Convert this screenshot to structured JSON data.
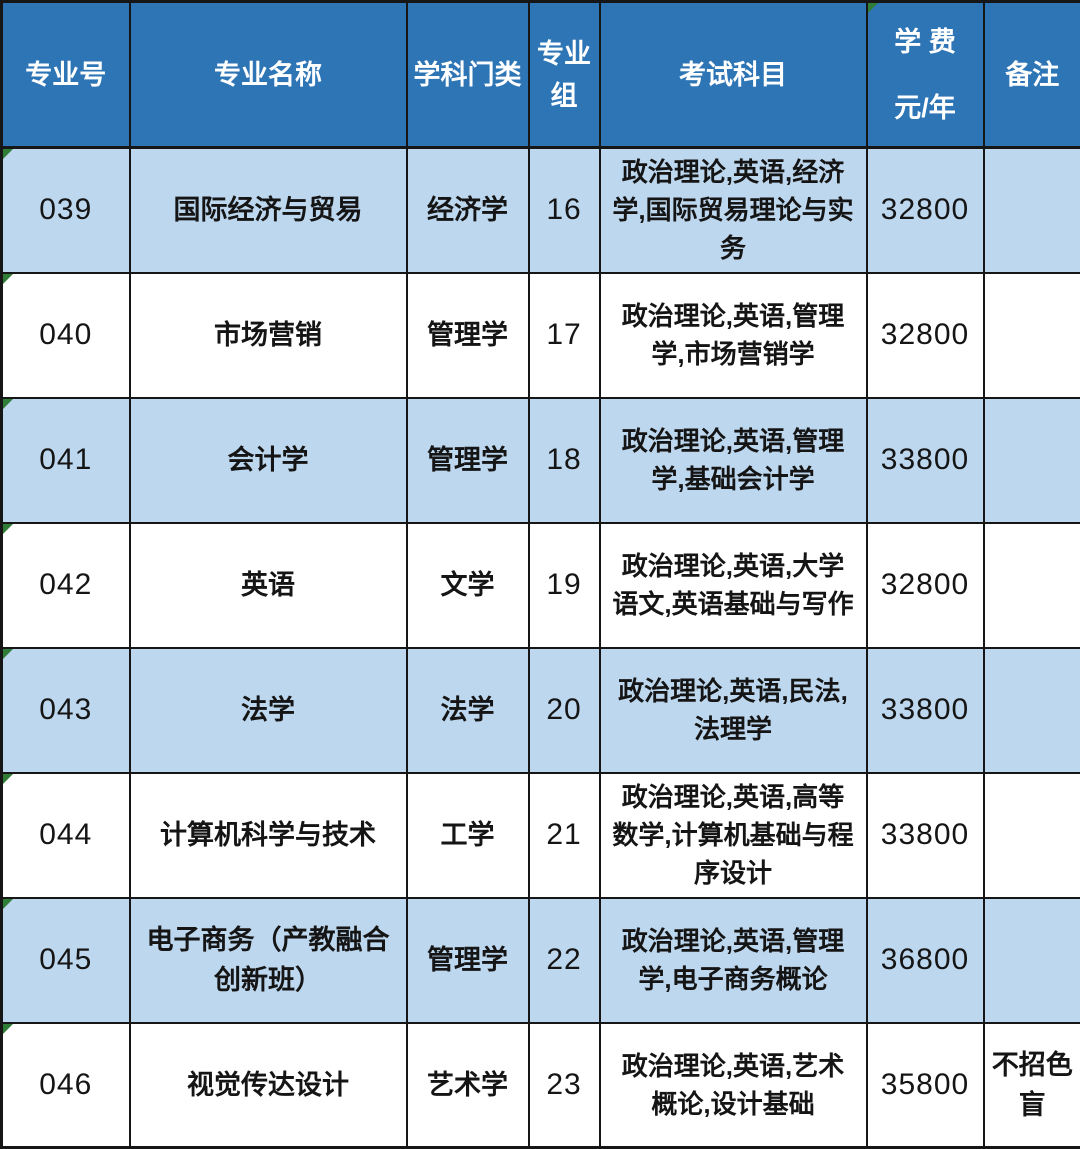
{
  "table": {
    "columns": [
      {
        "key": "code",
        "label_lines": [
          "专业号"
        ]
      },
      {
        "key": "name",
        "label_lines": [
          "专业名称"
        ]
      },
      {
        "key": "discipline",
        "label_lines": [
          "学科门类"
        ]
      },
      {
        "key": "group",
        "label_lines": [
          "专业",
          "组"
        ]
      },
      {
        "key": "subjects",
        "label_lines": [
          "考试科目"
        ]
      },
      {
        "key": "tuition",
        "label_lines": [
          "学  费",
          "元/年"
        ],
        "corner_flag": true
      },
      {
        "key": "remark",
        "label_lines": [
          "备注"
        ]
      }
    ],
    "rows": [
      {
        "code": "039",
        "name": "国际经济与贸易",
        "discipline": "经济学",
        "group": "16",
        "subjects": [
          "政治理论,英语,经济",
          "学,国际贸易理论与实",
          "务"
        ],
        "tuition": "32800",
        "remark": ""
      },
      {
        "code": "040",
        "name": "市场营销",
        "discipline": "管理学",
        "group": "17",
        "subjects": [
          "政治理论,英语,管理",
          "学,市场营销学"
        ],
        "tuition": "32800",
        "remark": ""
      },
      {
        "code": "041",
        "name": "会计学",
        "discipline": "管理学",
        "group": "18",
        "subjects": [
          "政治理论,英语,管理",
          "学,基础会计学"
        ],
        "tuition": "33800",
        "remark": ""
      },
      {
        "code": "042",
        "name": "英语",
        "discipline": "文学",
        "group": "19",
        "subjects": [
          "政治理论,英语,大学",
          "语文,英语基础与写作"
        ],
        "tuition": "32800",
        "remark": ""
      },
      {
        "code": "043",
        "name": "法学",
        "discipline": "法学",
        "group": "20",
        "subjects": [
          "政治理论,英语,民法,",
          "法理学"
        ],
        "tuition": "33800",
        "remark": ""
      },
      {
        "code": "044",
        "name": "计算机科学与技术",
        "discipline": "工学",
        "group": "21",
        "subjects": [
          "政治理论,英语,高等",
          "数学,计算机基础与程",
          "序设计"
        ],
        "tuition": "33800",
        "remark": ""
      },
      {
        "code": "045",
        "name": [
          "电子商务（产教融合",
          "创新班）"
        ],
        "discipline": "管理学",
        "group": "22",
        "subjects": [
          "政治理论,英语,管理",
          "学,电子商务概论"
        ],
        "tuition": "36800",
        "remark": ""
      },
      {
        "code": "046",
        "name": "视觉传达设计",
        "discipline": "艺术学",
        "group": "23",
        "subjects": [
          "政治理论,英语,艺术",
          "概论,设计基础"
        ],
        "tuition": "35800",
        "remark": [
          "不招色",
          "盲"
        ]
      }
    ],
    "row_flag_column": "code"
  },
  "colors": {
    "header_bg": "#2e75b6",
    "header_text": "#ffffff",
    "row_stripe_bg": "#bdd7ee",
    "row_plain_bg": "#ffffff",
    "grid_border": "#161616",
    "body_text": "#151515",
    "flag_green": "#2f7d36"
  },
  "icons": {
    "corner_flag": "excel-text-format-flag-triangle-icon"
  }
}
